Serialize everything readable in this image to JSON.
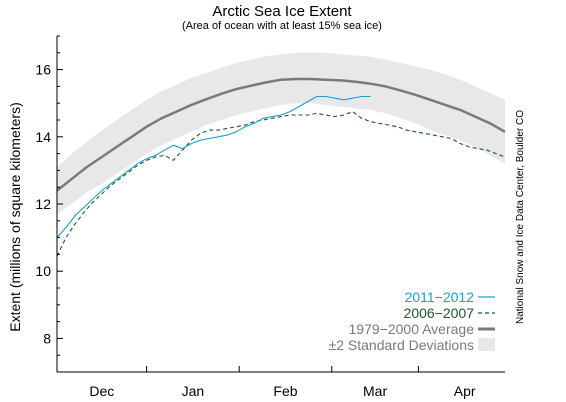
{
  "chart_data": {
    "type": "line",
    "title": "Arctic Sea Ice Extent",
    "subtitle": "(Area of ocean with at least 15% sea ice)",
    "xlabel": "",
    "ylabel": "Extent (millions of square kilometers)",
    "ylim": [
      7,
      17
    ],
    "yticks": [
      8,
      10,
      12,
      14,
      16
    ],
    "xlim": [
      0,
      150
    ],
    "month_ticks": [
      0,
      30,
      61,
      92,
      121,
      152
    ],
    "month_labels": [
      {
        "label": "Dec",
        "x": 15
      },
      {
        "label": "Jan",
        "x": 45.5
      },
      {
        "label": "Feb",
        "x": 76.5
      },
      {
        "label": "Mar",
        "x": 106.5
      },
      {
        "label": "Apr",
        "x": 136.5
      }
    ],
    "credit": "National Snow and Ice Data Center, Boulder CO",
    "series": [
      {
        "name": "2011−2012",
        "color": "#1a9fd8",
        "style": "solid",
        "x": [
          0,
          3,
          6,
          9,
          12,
          15,
          18,
          21,
          24,
          27,
          30,
          33,
          36,
          39,
          42,
          45,
          48,
          51,
          54,
          57,
          60,
          63,
          66,
          69,
          72,
          75,
          78,
          81,
          84,
          87,
          90,
          93,
          96,
          99,
          102,
          105
        ],
        "y": [
          11.0,
          11.3,
          11.65,
          11.9,
          12.15,
          12.4,
          12.6,
          12.8,
          13.0,
          13.2,
          13.35,
          13.45,
          13.6,
          13.75,
          13.65,
          13.8,
          13.9,
          13.95,
          14.0,
          14.05,
          14.15,
          14.3,
          14.4,
          14.55,
          14.6,
          14.65,
          14.75,
          14.9,
          15.05,
          15.2,
          15.2,
          15.15,
          15.1,
          15.15,
          15.2,
          15.2
        ]
      },
      {
        "name": "2006−2007",
        "color": "#1f5a2a",
        "style": "dashed",
        "x": [
          0,
          3,
          6,
          9,
          12,
          15,
          18,
          21,
          24,
          27,
          30,
          33,
          36,
          39,
          42,
          45,
          48,
          51,
          54,
          57,
          60,
          63,
          66,
          69,
          72,
          75,
          78,
          81,
          84,
          87,
          90,
          93,
          96,
          99,
          102,
          105,
          108,
          111,
          114,
          117,
          120,
          123,
          126,
          129,
          132,
          135,
          138,
          141,
          144,
          147,
          150
        ],
        "y": [
          10.45,
          11.0,
          11.4,
          11.75,
          12.05,
          12.3,
          12.55,
          12.75,
          12.95,
          13.15,
          13.3,
          13.4,
          13.45,
          13.3,
          13.6,
          13.9,
          14.1,
          14.2,
          14.2,
          14.25,
          14.3,
          14.35,
          14.45,
          14.5,
          14.55,
          14.6,
          14.65,
          14.65,
          14.65,
          14.7,
          14.65,
          14.6,
          14.65,
          14.75,
          14.55,
          14.45,
          14.4,
          14.35,
          14.3,
          14.2,
          14.15,
          14.1,
          14.05,
          14.0,
          13.95,
          13.8,
          13.7,
          13.65,
          13.6,
          13.5,
          13.4
        ]
      },
      {
        "name": "1979−2000 Average",
        "color": "#7a7a7a",
        "style": "thick",
        "x": [
          0,
          5,
          10,
          15,
          20,
          25,
          30,
          35,
          40,
          45,
          50,
          55,
          60,
          65,
          70,
          75,
          80,
          85,
          90,
          95,
          100,
          105,
          110,
          115,
          120,
          125,
          130,
          135,
          140,
          145,
          150
        ],
        "y": [
          12.4,
          12.75,
          13.1,
          13.4,
          13.7,
          14.0,
          14.3,
          14.55,
          14.75,
          14.95,
          15.12,
          15.28,
          15.42,
          15.52,
          15.62,
          15.7,
          15.72,
          15.72,
          15.7,
          15.68,
          15.64,
          15.58,
          15.5,
          15.38,
          15.25,
          15.1,
          14.95,
          14.8,
          14.6,
          14.4,
          14.15
        ]
      }
    ],
    "band": {
      "name": "±2 Standard Deviations",
      "color": "#e8e8e8",
      "x": [
        0,
        5,
        10,
        15,
        20,
        25,
        30,
        35,
        40,
        45,
        50,
        55,
        60,
        65,
        70,
        75,
        80,
        85,
        90,
        95,
        100,
        105,
        110,
        115,
        120,
        125,
        130,
        135,
        140,
        145,
        150
      ],
      "upper": [
        13.1,
        13.5,
        13.85,
        14.2,
        14.5,
        14.8,
        15.1,
        15.35,
        15.55,
        15.75,
        15.9,
        16.05,
        16.2,
        16.3,
        16.4,
        16.45,
        16.5,
        16.5,
        16.5,
        16.45,
        16.42,
        16.38,
        16.3,
        16.2,
        16.1,
        16.0,
        15.85,
        15.7,
        15.5,
        15.3,
        15.1
      ],
      "lower": [
        11.7,
        12.0,
        12.35,
        12.6,
        12.9,
        13.2,
        13.5,
        13.75,
        13.95,
        14.15,
        14.35,
        14.5,
        14.65,
        14.75,
        14.85,
        14.95,
        15.0,
        15.0,
        14.95,
        14.9,
        14.85,
        14.8,
        14.7,
        14.55,
        14.4,
        14.2,
        14.05,
        13.9,
        13.7,
        13.45,
        13.2
      ]
    }
  }
}
